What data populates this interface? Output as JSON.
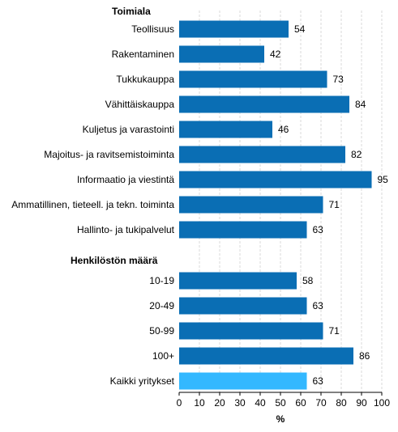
{
  "chart_data": {
    "type": "bar",
    "orientation": "horizontal",
    "xlabel": "%",
    "xlim": [
      0,
      100
    ],
    "xticks": [
      0,
      10,
      20,
      30,
      40,
      50,
      60,
      70,
      80,
      90,
      100
    ],
    "grid": true,
    "groups": [
      {
        "title": "Toimiala",
        "categories": [
          "Teollisuus",
          "Rakentaminen",
          "Tukkukauppa",
          "Vähittäiskauppa",
          "Kuljetus ja varastointi",
          "Majoitus- ja ravitsemistoiminta",
          "Informaatio ja viestintä",
          "Ammatillinen, tieteell. ja tekn. toiminta",
          "Hallinto- ja tukipalvelut"
        ],
        "values": [
          54,
          42,
          73,
          84,
          46,
          82,
          95,
          71,
          63
        ]
      },
      {
        "title": "Henkilöstön määrä",
        "categories": [
          "10-19",
          "20-49",
          "50-99",
          "100+",
          "Kaikki yritykset"
        ],
        "values": [
          58,
          63,
          71,
          86,
          63
        ]
      }
    ],
    "colors": {
      "bar": "#0a6eb4",
      "highlight": "#33b8ff",
      "highlight_category": "Kaikki yritykset"
    }
  }
}
